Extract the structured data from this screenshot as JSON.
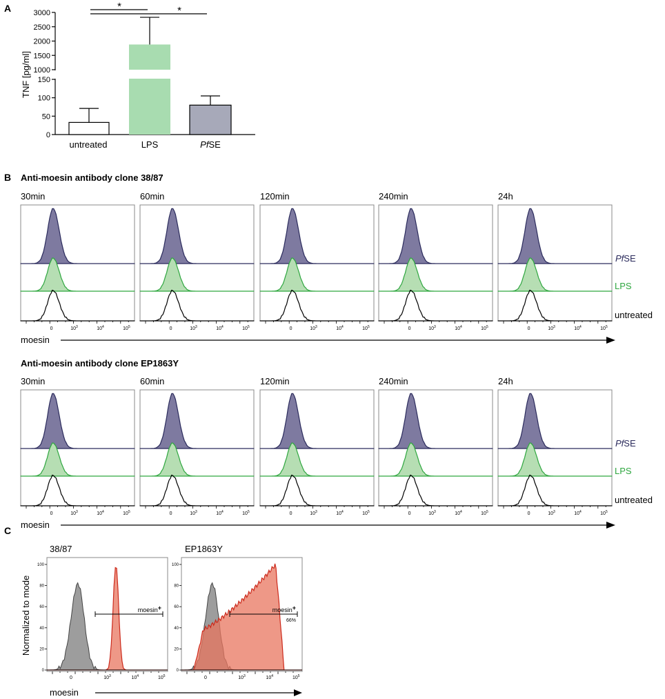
{
  "panel_a": {
    "letter": "A",
    "chart_data": {
      "type": "bar",
      "title": "",
      "xlabel": "",
      "ylabel": "TNF [pg/ml]",
      "categories": [
        "untreated",
        "LPS",
        "PfSE"
      ],
      "values": [
        33,
        1880,
        80
      ],
      "errors": [
        38,
        950,
        25
      ],
      "colors": [
        "#ffffff",
        "#a8dcb0",
        "#a7a9b9"
      ],
      "axis_break": {
        "lower": [
          0,
          150
        ],
        "upper": [
          1000,
          3000
        ]
      },
      "lower_ticks": [
        "0",
        "50",
        "100",
        "150"
      ],
      "upper_ticks": [
        "1000",
        "1500",
        "2000",
        "2500",
        "3000"
      ],
      "significance": [
        {
          "from": "untreated",
          "to": "LPS",
          "label": "*"
        },
        {
          "from": "untreated",
          "to": "PfSE",
          "label": "*"
        }
      ]
    }
  },
  "panel_b": {
    "letter": "B",
    "timepoints": [
      "30min",
      "60min",
      "120min",
      "240min",
      "24h"
    ],
    "x_tick_labels": [
      "0",
      "10",
      "3",
      "10",
      "4",
      "10",
      "5"
    ],
    "xlabel": "moesin",
    "blocks": [
      {
        "title": "Anti-moesin antibody clone 38/87"
      },
      {
        "title": "Anti-moesin antibody clone EP1863Y"
      }
    ],
    "series": [
      {
        "name_prefix": "Pf",
        "name_suffix": "SE",
        "color": "#2b2b5c",
        "fill": "#7e7aa0"
      },
      {
        "name": "LPS",
        "color": "#2ea63f",
        "fill": "#b6deb3"
      },
      {
        "name": "untreated",
        "color": "#000000",
        "fill": "none"
      }
    ]
  },
  "panel_c": {
    "letter": "C",
    "ylabel": "Normalized to mode",
    "xlabel": "moesin",
    "y_ticks": [
      "0",
      "20",
      "40",
      "60",
      "80",
      "100"
    ],
    "x_tick_labels": [
      "0",
      "10",
      "3",
      "10",
      "4",
      "10",
      "5"
    ],
    "plots": [
      {
        "title": "38/87",
        "gate_label": "moesin",
        "gate_sup": "+",
        "gate_pct": ""
      },
      {
        "title": "EP1863Y",
        "gate_label": "moesin",
        "gate_sup": "+",
        "gate_pct": "66%"
      }
    ],
    "colors": {
      "isotype": "#8c8c8c",
      "stain": "#e8765f",
      "stain_line": "#cc2a1c"
    }
  }
}
